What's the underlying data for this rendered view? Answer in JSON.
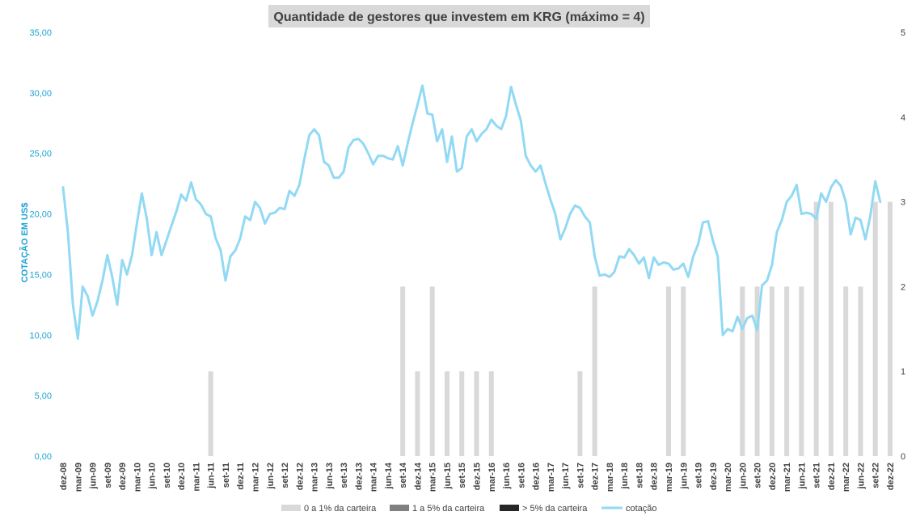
{
  "chart_data": {
    "type": "bar+line",
    "title": "Quantidade de gestores que investem em KRG (máximo = 4)",
    "ylabel": "COTAÇÃO EM US$",
    "y_left_lim": [
      0,
      35
    ],
    "y_left_ticks": [
      "0,00",
      "5,00",
      "10,00",
      "15,00",
      "20,00",
      "25,00",
      "30,00",
      "35,00"
    ],
    "y_right_lim": [
      0,
      5
    ],
    "y_right_ticks": [
      "0",
      "1",
      "2",
      "3",
      "4",
      "5"
    ],
    "x_tick_labels": [
      "dez-08",
      "mar-09",
      "jun-09",
      "set-09",
      "dez-09",
      "mar-10",
      "jun-10",
      "set-10",
      "dez-10",
      "mar-11",
      "jun-11",
      "set-11",
      "dez-11",
      "mar-12",
      "jun-12",
      "set-12",
      "dez-12",
      "mar-13",
      "jun-13",
      "set-13",
      "dez-13",
      "mar-14",
      "jun-14",
      "set-14",
      "dez-14",
      "mar-15",
      "jun-15",
      "set-15",
      "dez-15",
      "mar-16",
      "jun-16",
      "set-16",
      "dez-16",
      "mar-17",
      "jun-17",
      "set-17",
      "dez-17",
      "mar-18",
      "jun-18",
      "set-18",
      "dez-18",
      "mar-19",
      "jun-19",
      "set-19",
      "dez-19",
      "mar-20",
      "jun-20",
      "set-20",
      "dez-20",
      "mar-21",
      "jun-21",
      "set-21",
      "dez-21",
      "mar-22",
      "jun-22",
      "set-22",
      "dez-22"
    ],
    "grid": false,
    "legend_position": "bottom",
    "legend": [
      {
        "name": "0 a 1% da carteira",
        "color": "#d9d9d9",
        "kind": "bar"
      },
      {
        "name": "1 a 5% da carteira",
        "color": "#808080",
        "kind": "bar"
      },
      {
        "name": "> 5% da carteira",
        "color": "#262626",
        "kind": "bar"
      },
      {
        "name": "cotação",
        "color": "#92d9f4",
        "kind": "line"
      }
    ],
    "bars_0a1": {
      "quarter_index": [
        10,
        23,
        24,
        25,
        26,
        27,
        28,
        29,
        35,
        36,
        41,
        42,
        46,
        47,
        48,
        49,
        50,
        51,
        52,
        53,
        54,
        55,
        56
      ],
      "values": [
        1,
        2,
        1,
        2,
        1,
        1,
        1,
        1,
        1,
        2,
        2,
        2,
        2,
        2,
        2,
        2,
        2,
        3,
        3,
        2,
        2,
        3,
        3
      ]
    },
    "line_cotacao": {
      "quarter_pos": [
        0,
        0.33,
        0.67,
        1,
        1.33,
        1.67,
        2,
        2.33,
        2.67,
        3,
        3.33,
        3.67,
        4,
        4.33,
        4.67,
        5,
        5.33,
        5.67,
        6,
        6.33,
        6.67,
        7,
        7.33,
        7.67,
        8,
        8.33,
        8.67,
        9,
        9.33,
        9.67,
        10,
        10.33,
        10.67,
        11,
        11.33,
        11.67,
        12,
        12.33,
        12.67,
        13,
        13.33,
        13.67,
        14,
        14.33,
        14.67,
        15,
        15.33,
        15.67,
        16,
        16.33,
        16.67,
        17,
        17.33,
        17.67,
        18,
        18.33,
        18.67,
        19,
        19.33,
        19.67,
        20,
        20.33,
        20.67,
        21,
        21.33,
        21.67,
        22,
        22.33,
        22.67,
        23,
        23.33,
        23.67,
        24,
        24.33,
        24.67,
        25,
        25.33,
        25.67,
        26,
        26.33,
        26.67,
        27,
        27.33,
        27.67,
        28,
        28.33,
        28.67,
        29,
        29.33,
        29.67,
        30,
        30.33,
        30.67,
        31,
        31.33,
        31.67,
        32,
        32.33,
        32.67,
        33,
        33.33,
        33.67,
        34,
        34.33,
        34.67,
        35,
        35.33,
        35.67,
        36,
        36.33,
        36.67,
        37,
        37.33,
        37.67,
        38,
        38.33,
        38.67,
        39,
        39.33,
        39.67,
        40,
        40.33,
        40.67,
        41,
        41.33,
        41.67,
        42,
        42.33,
        42.67,
        43,
        43.33,
        43.67,
        44,
        44.33,
        44.67,
        45,
        45.33,
        45.67,
        46,
        46.33,
        46.67,
        47,
        47.33,
        47.67,
        48,
        48.33,
        48.67,
        49,
        49.33,
        49.67,
        50,
        50.33,
        50.67,
        51,
        51.33,
        51.67,
        52,
        52.33,
        52.67,
        53,
        53.33,
        53.67,
        54,
        54.33,
        54.67,
        55,
        55.33,
        55.67,
        56
      ],
      "values": [
        22.2,
        18.5,
        12.5,
        9.7,
        14.0,
        13.2,
        11.6,
        12.8,
        14.5,
        16.6,
        14.8,
        12.5,
        16.2,
        15.0,
        16.6,
        19.2,
        21.7,
        19.6,
        16.6,
        18.5,
        16.6,
        17.8,
        19.0,
        20.2,
        21.6,
        21.1,
        22.6,
        21.2,
        20.8,
        20.0,
        19.8,
        18.0,
        17.0,
        14.5,
        16.5,
        17.0,
        18.0,
        19.8,
        19.5,
        21.0,
        20.5,
        19.2,
        20.0,
        20.1,
        20.5,
        20.4,
        21.9,
        21.5,
        22.4,
        24.5,
        26.5,
        27.0,
        26.5,
        24.3,
        24.0,
        23.0,
        23.0,
        23.5,
        25.5,
        26.1,
        26.2,
        25.8,
        25.0,
        24.1,
        24.8,
        24.8,
        24.6,
        24.5,
        25.6,
        24.0,
        25.8,
        27.5,
        29.0,
        30.6,
        28.3,
        28.2,
        26.0,
        27.0,
        24.3,
        26.4,
        23.5,
        23.8,
        26.4,
        27.0,
        26.0,
        26.6,
        27.0,
        27.8,
        27.3,
        27.0,
        28.1,
        30.5,
        29.0,
        27.7,
        24.8,
        24.0,
        23.5,
        24.0,
        22.5,
        21.2,
        20.0,
        17.9,
        18.8,
        20.0,
        20.7,
        20.5,
        19.8,
        19.3,
        16.5,
        14.9,
        15.0,
        14.8,
        15.2,
        16.5,
        16.4,
        17.1,
        16.6,
        15.9,
        16.4,
        14.7,
        16.4,
        15.8,
        16.0,
        15.9,
        15.4,
        15.5,
        15.9,
        14.8,
        16.5,
        17.5,
        19.3,
        19.4,
        17.8,
        16.5,
        10.0,
        10.5,
        10.3,
        11.5,
        10.5,
        11.4,
        11.6,
        10.4,
        14.1,
        14.5,
        15.8,
        18.5,
        19.5,
        21.0,
        21.5,
        22.4,
        20.0,
        20.1,
        20.0,
        19.6,
        21.7,
        21.0,
        22.2,
        22.8,
        22.3,
        21.0,
        18.3,
        19.7,
        19.5,
        17.9,
        19.9,
        22.7,
        21.0
      ]
    }
  }
}
